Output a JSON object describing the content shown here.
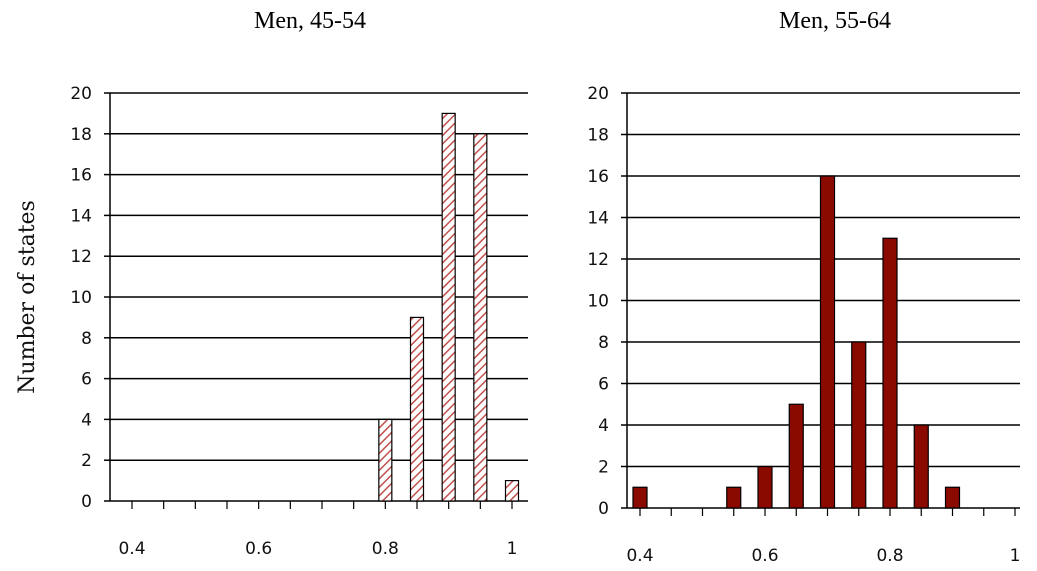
{
  "chart_data": [
    {
      "type": "bar",
      "title": "Men, 45-54",
      "ylabel": "Number of states",
      "xlabel": "",
      "x": [
        0.8,
        0.85,
        0.9,
        0.95,
        1.0
      ],
      "values": [
        4,
        9,
        19,
        18,
        1
      ],
      "xlim": [
        0.4,
        1.0
      ],
      "ylim": [
        0,
        20
      ],
      "xticks": [
        "0.4",
        "0.6",
        "0.8",
        "1"
      ],
      "yticks": [
        "0",
        "2",
        "4",
        "6",
        "8",
        "10",
        "12",
        "14",
        "16",
        "18",
        "20"
      ],
      "grid": true,
      "bar_style": "hatched",
      "colors": {
        "bar_fill": "#ffffff",
        "bar_hatch": "#c0504d",
        "bar_edge": "#000000"
      }
    },
    {
      "type": "bar",
      "title": "Men, 55-64",
      "ylabel": "",
      "xlabel": "",
      "x": [
        0.4,
        0.55,
        0.6,
        0.65,
        0.7,
        0.75,
        0.8,
        0.85,
        0.9
      ],
      "values": [
        1,
        1,
        2,
        5,
        16,
        8,
        13,
        4,
        1
      ],
      "xlim": [
        0.4,
        1.0
      ],
      "ylim": [
        0,
        20
      ],
      "xticks": [
        "0.4",
        "0.6",
        "0.8",
        "1"
      ],
      "yticks": [
        "0",
        "2",
        "4",
        "6",
        "8",
        "10",
        "12",
        "14",
        "16",
        "18",
        "20"
      ],
      "grid": true,
      "bar_style": "solid",
      "colors": {
        "bar_fill": "#8b0a00",
        "bar_edge": "#000000"
      }
    }
  ]
}
